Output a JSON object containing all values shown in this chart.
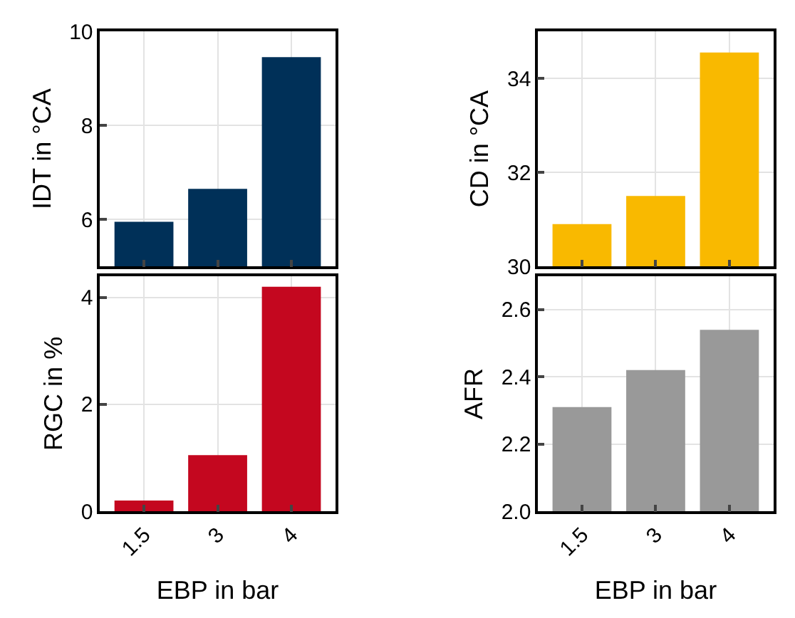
{
  "chart_data": [
    {
      "type": "bar",
      "ylabel": "IDT in °CA",
      "categories": [
        "1.5",
        "3",
        "4"
      ],
      "values": [
        5.95,
        6.65,
        9.45
      ],
      "color": "#003058",
      "ylim": [
        5,
        10
      ],
      "yticks": [
        6,
        8,
        10
      ],
      "grid": true,
      "tick_labels": "y"
    },
    {
      "type": "bar",
      "ylabel": "CD in °CA",
      "categories": [
        "1.5",
        "3",
        "4"
      ],
      "values": [
        30.9,
        31.5,
        34.55
      ],
      "color": "#f9b900",
      "ylim": [
        30,
        35
      ],
      "yticks": [
        30,
        32,
        34
      ],
      "grid": true,
      "tick_labels": "y"
    },
    {
      "type": "bar",
      "xlabel": "EBP in bar",
      "ylabel": "RGC in %",
      "categories": [
        "1.5",
        "3",
        "4"
      ],
      "values": [
        0.2,
        1.05,
        4.2
      ],
      "color": "#c4071f",
      "ylim": [
        0,
        4.4
      ],
      "yticks": [
        0,
        2,
        4
      ],
      "grid": true
    },
    {
      "type": "bar",
      "xlabel": "EBP in bar",
      "ylabel": "AFR",
      "categories": [
        "1.5",
        "3",
        "4"
      ],
      "values": [
        2.31,
        2.42,
        2.54
      ],
      "color": "#999999",
      "ylim": [
        2.0,
        2.7
      ],
      "yticks": [
        {
          "value": 2.0,
          "label": "2.0"
        },
        {
          "value": 2.2,
          "label": "2.2"
        },
        {
          "value": 2.4,
          "label": "2.4"
        },
        {
          "value": 2.6,
          "label": "2.6"
        }
      ],
      "grid": true
    }
  ]
}
